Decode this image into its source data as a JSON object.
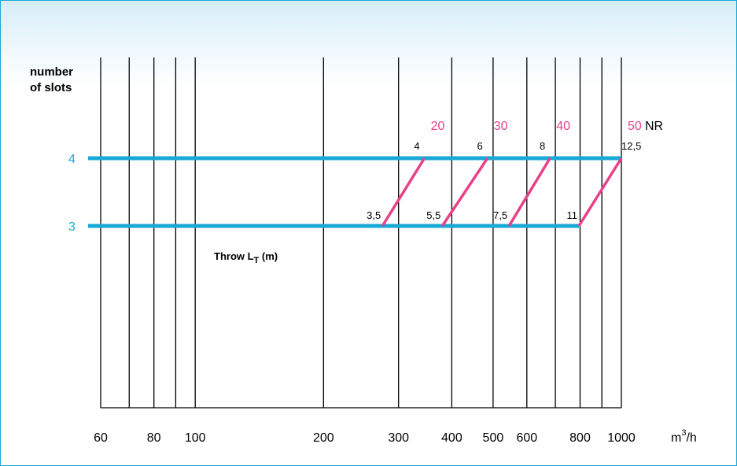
{
  "chart_data": {
    "type": "line",
    "xscale": "log",
    "xlim": [
      60,
      1000
    ],
    "xticks": [
      60,
      70,
      80,
      90,
      100,
      200,
      300,
      400,
      500,
      600,
      700,
      800,
      900,
      1000
    ],
    "xtick_labels": [
      {
        "value": 60,
        "text": "60"
      },
      {
        "value": 80,
        "text": "80"
      },
      {
        "value": 100,
        "text": "100"
      },
      {
        "value": 200,
        "text": "200"
      },
      {
        "value": 300,
        "text": "300"
      },
      {
        "value": 400,
        "text": "400"
      },
      {
        "value": 500,
        "text": "500"
      },
      {
        "value": 600,
        "text": "600"
      },
      {
        "value": 800,
        "text": "800"
      },
      {
        "value": 1000,
        "text": "1000"
      }
    ],
    "x_unit": "m³/h",
    "x_unit_base": "m",
    "x_unit_sup": "3",
    "x_unit_rest": "/h",
    "ylabel_line1": "number",
    "ylabel_line2": "of slots",
    "y_levels": [
      {
        "value": 4,
        "label": "4"
      },
      {
        "value": 3,
        "label": "3"
      }
    ],
    "throw_label_main": "Throw L",
    "throw_label_sub": "T",
    "throw_label_tail": " (m)",
    "horizontal_lines": [
      {
        "slots": 4,
        "x_end": 1000
      },
      {
        "slots": 3,
        "x_end": 795
      }
    ],
    "nr_lines": [
      {
        "nr": "20",
        "x_at_3": 275,
        "x_at_4": 345,
        "throw_at_3": "3,5",
        "throw_at_4": "4"
      },
      {
        "nr": "30",
        "x_at_3": 380,
        "x_at_4": 485,
        "throw_at_3": "5,5",
        "throw_at_4": "6"
      },
      {
        "nr": "40",
        "x_at_3": 545,
        "x_at_4": 680,
        "throw_at_3": "7,5",
        "throw_at_4": "8"
      },
      {
        "nr": "50",
        "x_at_3": 795,
        "x_at_4": 1000,
        "throw_at_3": "11",
        "throw_at_4": "12,5"
      }
    ],
    "nr_unit": "NR",
    "colors": {
      "slot_lines": "#1aa8d6",
      "nr_lines": "#e8418a",
      "grid": "#000000",
      "frame": "#1aa8d6"
    }
  }
}
